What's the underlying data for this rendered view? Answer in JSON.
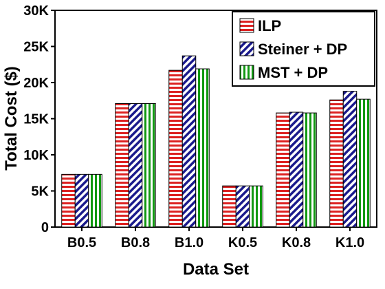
{
  "chart_data": {
    "type": "bar",
    "title": "",
    "xlabel": "Data Set",
    "ylabel": "Total Cost ($)",
    "categories": [
      "B0.5",
      "B0.8",
      "B1.0",
      "K0.5",
      "K0.8",
      "K1.0"
    ],
    "series": [
      {
        "name": "ILP",
        "values": [
          7300,
          17100,
          21700,
          5700,
          15800,
          17600
        ],
        "color": "#dd2222",
        "pattern": "horizontal-stripes"
      },
      {
        "name": "Steiner + DP",
        "values": [
          7300,
          17100,
          23700,
          5700,
          15900,
          18800
        ],
        "color": "#1a1a8c",
        "pattern": "diagonal-stripes"
      },
      {
        "name": "MST + DP",
        "values": [
          7300,
          17100,
          21900,
          5700,
          15800,
          17700
        ],
        "color": "#119911",
        "pattern": "vertical-stripes"
      }
    ],
    "ylim": [
      0,
      30000
    ],
    "yticks": [
      0,
      5000,
      10000,
      15000,
      20000,
      25000,
      30000
    ],
    "ytick_labels": [
      "0",
      "5K",
      "10K",
      "15K",
      "20K",
      "25K",
      "30K"
    ],
    "grid": false,
    "legend_position": "top-right"
  }
}
